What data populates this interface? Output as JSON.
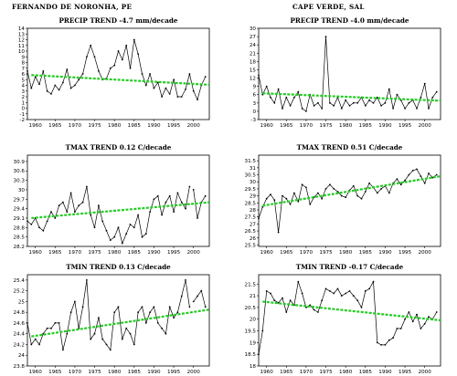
{
  "col_titles": [
    "FERNANDO DE NORONHA, PE",
    "CAPE VERDE, SAL"
  ],
  "trend_color": "#22cc22",
  "line_color": "#000000",
  "chart_data": [
    {
      "type": "line",
      "title": "PRECIP TREND -4.7 mm/decade",
      "column": 0,
      "row": 0,
      "xlim": [
        1958,
        2004
      ],
      "ylim": [
        -2,
        14
      ],
      "xticks": [
        1960,
        1965,
        1970,
        1975,
        1980,
        1985,
        1990,
        1995,
        2000
      ],
      "yticks": [
        -2,
        -1,
        0,
        1,
        2,
        3,
        4,
        5,
        6,
        7,
        8,
        9,
        10,
        11,
        12,
        13,
        14
      ],
      "grid": false,
      "legend": "none",
      "series": [
        {
          "x": [
            1958,
            1959,
            1960,
            1961,
            1962,
            1963,
            1964,
            1965,
            1966,
            1967,
            1968,
            1969,
            1970,
            1971,
            1972,
            1973,
            1974,
            1975,
            1976,
            1977,
            1978,
            1979,
            1980,
            1981,
            1982,
            1983,
            1984,
            1985,
            1986,
            1987,
            1988,
            1989,
            1990,
            1991,
            1992,
            1993,
            1994,
            1995,
            1996,
            1997,
            1998,
            1999,
            2000,
            2001,
            2002,
            2003
          ],
          "y": [
            6.5,
            3.5,
            5.5,
            4.2,
            6.5,
            3,
            2.5,
            4,
            3.2,
            4.5,
            6.8,
            3.5,
            4,
            5,
            6,
            9,
            11,
            9,
            6.5,
            5,
            5.2,
            7,
            7.5,
            10,
            8.5,
            11,
            7,
            12,
            9.5,
            6,
            4,
            6,
            3.5,
            4.5,
            2,
            3.5,
            2.5,
            5,
            2,
            2,
            3.3,
            6,
            3,
            1.5,
            4,
            5.5
          ],
          "null_after": []
        }
      ],
      "trend": {
        "y_start": 5.8,
        "y_end": 4.1
      }
    },
    {
      "type": "line",
      "title": "PRECIP TREND -4.0 mm/decade",
      "column": 1,
      "row": 0,
      "xlim": [
        1958,
        2004
      ],
      "ylim": [
        -3,
        30
      ],
      "xticks": [
        1960,
        1965,
        1970,
        1975,
        1980,
        1985,
        1990,
        1995,
        2000
      ],
      "yticks": [
        -3,
        0,
        3,
        6,
        9,
        12,
        15,
        18,
        21,
        24,
        27,
        30
      ],
      "grid": false,
      "legend": "none",
      "series": [
        {
          "x": [
            1958,
            1959,
            1960,
            1961,
            1962,
            1963,
            1964,
            1965,
            1966,
            1967,
            1968,
            1969,
            1970,
            1971,
            1972,
            1973,
            1974,
            1975,
            1976,
            1977,
            1978,
            1979,
            1980,
            1981,
            1982,
            1983,
            1984,
            1985,
            1986,
            1987,
            1988,
            1989,
            1990,
            1991,
            1992,
            1993,
            1994,
            1995,
            1996,
            1997,
            1998,
            1999,
            2000,
            2001,
            2002,
            2003
          ],
          "y": [
            13,
            6,
            9,
            5,
            3,
            8,
            1,
            5,
            2,
            5,
            7,
            1,
            0,
            6,
            2,
            3,
            1,
            27,
            3,
            2,
            5,
            1,
            4,
            2,
            3,
            3,
            5,
            2,
            4,
            3,
            5,
            2,
            3,
            8,
            1,
            6,
            4,
            1,
            3,
            4,
            1,
            5,
            10,
            1,
            5,
            7
          ],
          "null_after": []
        }
      ],
      "trend": {
        "y_start": 6.5,
        "y_end": 3.8
      }
    },
    {
      "type": "line",
      "title": "TMAX TREND 0.12 C/decade",
      "column": 0,
      "row": 1,
      "xlim": [
        1958,
        2004
      ],
      "ylim": [
        28.2,
        31.1
      ],
      "xticks": [
        1960,
        1965,
        1970,
        1975,
        1980,
        1985,
        1990,
        1995,
        2000
      ],
      "yticks": [
        28.2,
        28.5,
        28.8,
        29.1,
        29.4,
        29.7,
        30,
        30.3,
        30.6,
        30.9
      ],
      "grid": false,
      "legend": "none",
      "series": [
        {
          "x": [
            1958,
            1959,
            1960,
            1961,
            1962,
            1963,
            1964,
            1965,
            1966,
            1967,
            1968,
            1969,
            1970,
            1971,
            1972,
            1973,
            1974,
            1975,
            1976,
            1977,
            1978,
            1979,
            1980,
            1981,
            1982,
            1983,
            1984,
            1985,
            1986,
            1987,
            1988,
            1989,
            1990,
            1991,
            1992,
            1993,
            1994,
            1995,
            1996,
            1997,
            1998,
            1999,
            2000,
            2001,
            2002,
            2003
          ],
          "y": [
            29,
            28.9,
            29.1,
            28.8,
            28.7,
            29,
            29.3,
            29.1,
            29.5,
            29.6,
            29.3,
            29.9,
            29.3,
            29.5,
            29.6,
            30.1,
            29.2,
            28.8,
            29.5,
            29,
            28.7,
            28.4,
            28.5,
            28.8,
            28.3,
            28.6,
            28.9,
            28.8,
            29.2,
            28.5,
            28.6,
            29.3,
            29.7,
            29.8,
            29.2,
            29.6,
            29.8,
            29.3,
            29.9,
            29.6,
            29.4,
            30.1,
            30,
            29.1,
            29.6,
            29.8
          ],
          "null_after": [
            1999
          ]
        }
      ],
      "trend": {
        "y_start": 29.1,
        "y_end": 29.6
      }
    },
    {
      "type": "line",
      "title": "TMAX TREND 0.51 C/decade",
      "column": 1,
      "row": 1,
      "xlim": [
        1958,
        2004
      ],
      "ylim": [
        25.4,
        31.9
      ],
      "xticks": [
        1960,
        1965,
        1970,
        1975,
        1980,
        1985,
        1990,
        1995,
        2000
      ],
      "yticks": [
        25.5,
        26,
        26.5,
        27,
        27.5,
        28,
        28.5,
        29,
        29.5,
        30,
        30.5,
        31,
        31.5
      ],
      "grid": false,
      "legend": "none",
      "series": [
        {
          "x": [
            1958,
            1959,
            1960,
            1961,
            1962,
            1963,
            1964,
            1965,
            1966,
            1967,
            1968,
            1969,
            1970,
            1971,
            1972,
            1973,
            1974,
            1975,
            1976,
            1977,
            1978,
            1979,
            1980,
            1981,
            1982,
            1983,
            1984,
            1985,
            1986,
            1987,
            1988,
            1989,
            1990,
            1991,
            1992,
            1993,
            1994,
            1995,
            1996,
            1997,
            1998,
            1999,
            2000,
            2001,
            2002,
            2003
          ],
          "y": [
            27.4,
            28.2,
            28.8,
            29.1,
            28.7,
            26.4,
            29,
            28.8,
            28.4,
            29.2,
            28.6,
            29.8,
            29.6,
            28.4,
            28.9,
            29.2,
            28.8,
            29.5,
            29.8,
            29.5,
            29.3,
            29,
            28.9,
            29.4,
            29.7,
            29,
            28.8,
            29.3,
            29.9,
            29.6,
            29.2,
            29.5,
            29.7,
            29.2,
            29.9,
            30.2,
            29.8,
            30.1,
            30.5,
            30.8,
            30.9,
            30.4,
            29.9,
            30.6,
            30.3,
            30.5
          ],
          "null_after": []
        }
      ],
      "trend": {
        "y_start": 28.3,
        "y_end": 30.4
      }
    },
    {
      "type": "line",
      "title": "TMIN TREND 0.13 C/decade",
      "column": 0,
      "row": 2,
      "xlim": [
        1958,
        2004
      ],
      "ylim": [
        23.8,
        25.5
      ],
      "xticks": [
        1960,
        1965,
        1970,
        1975,
        1980,
        1985,
        1990,
        1995,
        2000
      ],
      "yticks": [
        23.8,
        24,
        24.2,
        24.4,
        24.6,
        24.8,
        25,
        25.2,
        25.4
      ],
      "grid": false,
      "legend": "none",
      "series": [
        {
          "x": [
            1958,
            1959,
            1960,
            1961,
            1962,
            1963,
            1964,
            1965,
            1966,
            1967,
            1968,
            1969,
            1970,
            1971,
            1972,
            1973,
            1974,
            1975,
            1976,
            1977,
            1978,
            1979,
            1980,
            1981,
            1982,
            1983,
            1984,
            1985,
            1986,
            1987,
            1988,
            1989,
            1990,
            1991,
            1992,
            1993,
            1994,
            1995,
            1996,
            1997,
            1998,
            1999,
            2000,
            2001,
            2002,
            2003
          ],
          "y": [
            24.6,
            24.2,
            24.3,
            24.2,
            24.4,
            24.5,
            24.5,
            24.6,
            24.6,
            24.1,
            24.4,
            24.8,
            25,
            24.5,
            24.9,
            25.4,
            24.3,
            24.4,
            24.7,
            24.3,
            24.2,
            24.1,
            24.8,
            24.9,
            24.3,
            24.5,
            24.4,
            24.2,
            24.8,
            24.9,
            24.6,
            24.8,
            24.9,
            24.6,
            24.5,
            24.4,
            24.9,
            24.7,
            24.8,
            25.1,
            25.4,
            24.9,
            25,
            25.1,
            25.2,
            24.9
          ],
          "null_after": [
            1999
          ]
        }
      ],
      "trend": {
        "y_start": 24.35,
        "y_end": 24.85
      }
    },
    {
      "type": "line",
      "title": "TMIN TREND -0.17 C/decade",
      "column": 1,
      "row": 2,
      "xlim": [
        1958,
        2004
      ],
      "ylim": [
        18,
        21.9
      ],
      "xticks": [
        1960,
        1965,
        1970,
        1975,
        1980,
        1985,
        1990,
        1995,
        2000
      ],
      "yticks": [
        18,
        18.5,
        19,
        19.5,
        20,
        20.5,
        21,
        21.5
      ],
      "grid": false,
      "legend": "none",
      "series": [
        {
          "x": [
            1958,
            1959,
            1960,
            1961,
            1962,
            1963,
            1964,
            1965,
            1966,
            1967,
            1968,
            1969,
            1970,
            1971,
            1972,
            1973,
            1974,
            1975,
            1976,
            1977,
            1978,
            1979,
            1980,
            1981,
            1982,
            1983,
            1984,
            1985,
            1986,
            1987,
            1988,
            1989,
            1990,
            1991,
            1992,
            1993,
            1994,
            1995,
            1996,
            1997,
            1998,
            1999,
            2000,
            2001,
            2002,
            2003
          ],
          "y": [
            18.5,
            19.5,
            21.2,
            21.1,
            20.8,
            20.7,
            20.9,
            20.3,
            20.8,
            20.6,
            21.6,
            21.1,
            20.5,
            20.6,
            20.4,
            20.3,
            20.8,
            21.3,
            21.2,
            21.1,
            21.3,
            21,
            21.1,
            21.2,
            21,
            20.8,
            20.5,
            21.2,
            21.3,
            21.6,
            19,
            18.9,
            18.9,
            19.1,
            19.2,
            19.6,
            19.6,
            20,
            20.3,
            19.9,
            20.2,
            19.6,
            19.8,
            20.1,
            20,
            20.3
          ],
          "null_after": []
        }
      ],
      "trend": {
        "y_start": 20.75,
        "y_end": 19.95
      }
    }
  ]
}
